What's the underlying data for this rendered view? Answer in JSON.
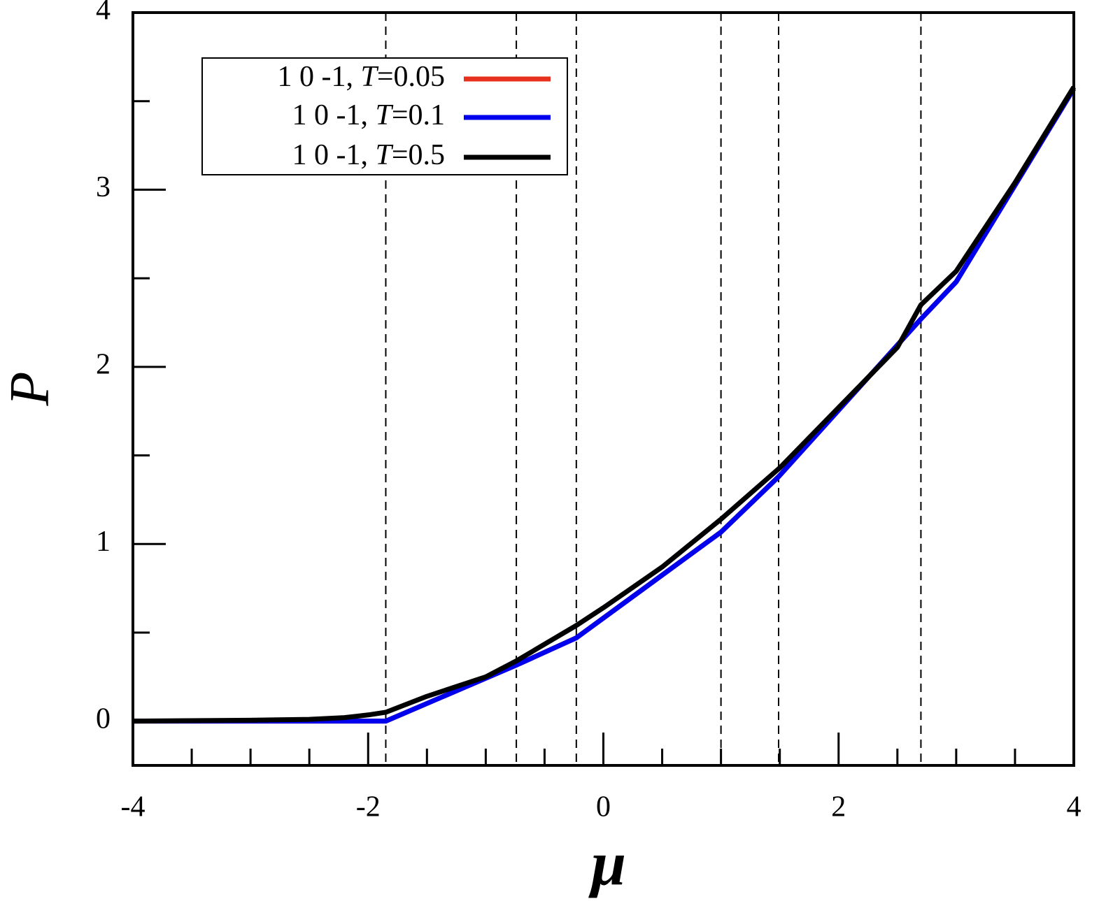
{
  "chart_data": {
    "type": "line",
    "xlabel": "μ",
    "ylabel": "P",
    "xlim": [
      -4,
      4
    ],
    "ylim": [
      -0.25,
      4
    ],
    "xticks": [
      -4,
      -2,
      0,
      2,
      4
    ],
    "yticks": [
      0,
      1,
      2,
      3,
      4
    ],
    "xminorticks": [
      -3.5,
      -3,
      -2.5,
      -1.5,
      -1,
      -0.5,
      0.5,
      1,
      1.5,
      2.5,
      3,
      3.5
    ],
    "yminorticks": [
      0.5,
      1.5,
      2.5,
      3.5
    ],
    "vlines": [
      -1.85,
      -0.74,
      -0.23,
      1.0,
      1.49,
      2.7
    ],
    "legend": "upper left",
    "series": [
      {
        "name": "1 0 -1, T=0.05",
        "color": "#e8301e",
        "x": [
          -4,
          -1.85,
          -0.74,
          -0.23,
          1.0,
          1.49,
          2.7,
          3.0,
          4
        ],
        "values": [
          0,
          0,
          0.316,
          0.47,
          1.067,
          1.38,
          2.27,
          2.48,
          3.57
        ]
      },
      {
        "name": "1 0 -1, T=0.1",
        "color": "#0000ee",
        "x": [
          -4,
          -1.85,
          -0.74,
          -0.23,
          1.0,
          1.49,
          2.7,
          3.0,
          4
        ],
        "values": [
          0,
          0,
          0.316,
          0.47,
          1.067,
          1.38,
          2.27,
          2.48,
          3.57
        ]
      },
      {
        "name": "1 0 -1, T=0.5",
        "color": "#000000",
        "x": [
          -4,
          -3,
          -2.5,
          -2.2,
          -2.0,
          -1.85,
          -1.5,
          -1.0,
          -0.74,
          -0.23,
          0,
          0.5,
          1.0,
          1.5,
          2.0,
          2.5,
          2.7,
          3.0,
          3.5,
          4
        ],
        "values": [
          0,
          0.005,
          0.01,
          0.02,
          0.035,
          0.05,
          0.14,
          0.25,
          0.34,
          0.54,
          0.64,
          0.87,
          1.14,
          1.43,
          1.77,
          2.11,
          2.35,
          2.54,
          3.04,
          3.58
        ]
      }
    ]
  }
}
